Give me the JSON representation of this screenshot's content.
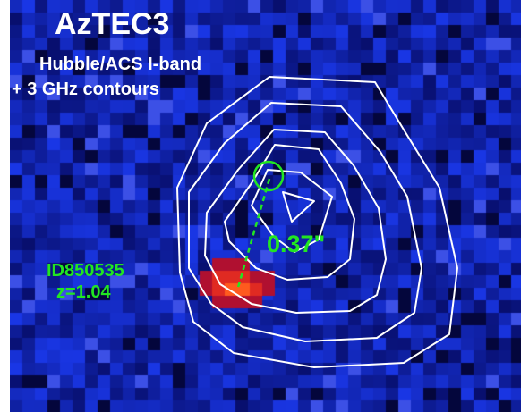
{
  "image": {
    "title": "AzTEC3",
    "subtitle_line1": "Hubble/ACS I-band",
    "subtitle_line2": "+ 3 GHz contours",
    "offset_label": "0.37\"",
    "source": {
      "id": "ID850535",
      "redshift": "z=1.04"
    }
  },
  "colors": {
    "background": "#0b1a9c",
    "contours": "#ffffff",
    "annotations": "#22e622",
    "hotspot_core": "#ff5a1e",
    "hotspot_outer": "#b01030"
  }
}
